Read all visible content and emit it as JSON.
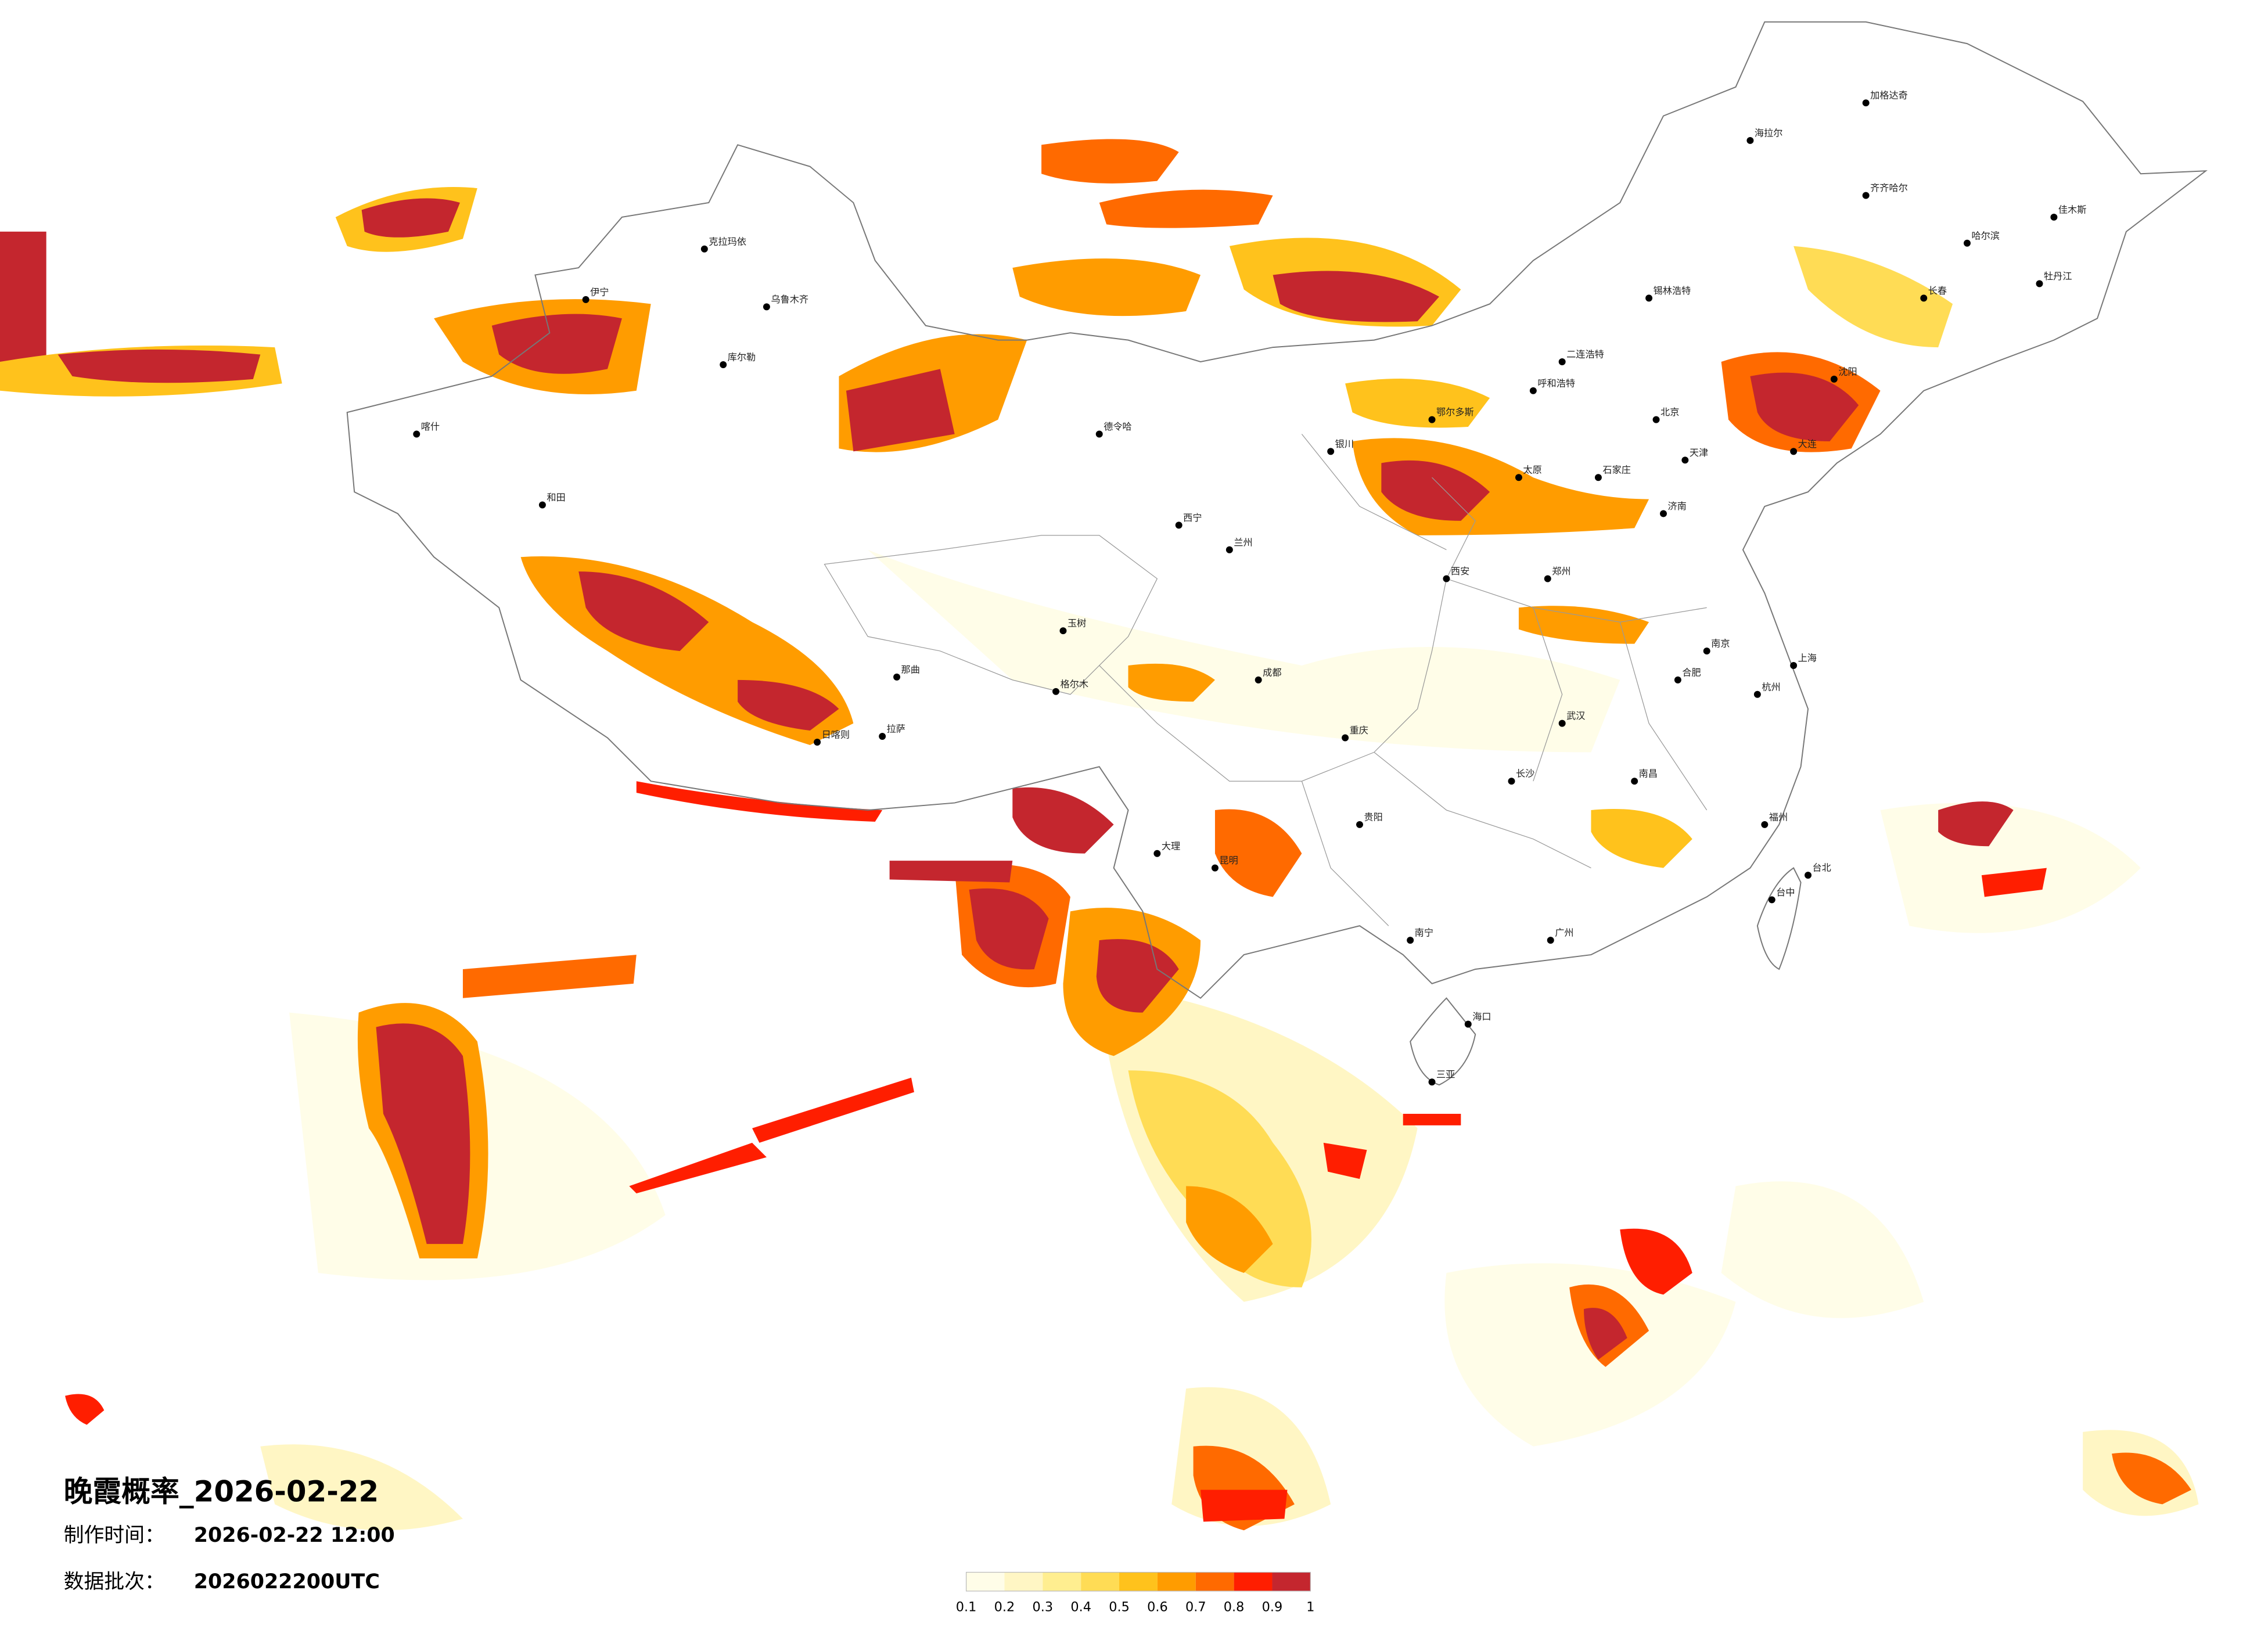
{
  "title": "晚霞概率_2026-02-22",
  "info": [
    {
      "label": "制作时间：",
      "value": "2026-02-22 12:00"
    },
    {
      "label": "数据批次：",
      "value": "2026022200UTC"
    }
  ],
  "legend": {
    "colors": [
      "#fffde8",
      "#fff6c4",
      "#ffee90",
      "#ffdc55",
      "#ffc21c",
      "#ff9c00",
      "#ff6a00",
      "#ff1e00",
      "#c4262e"
    ],
    "ticks": [
      0.1,
      0.2,
      0.3,
      0.4,
      0.5,
      0.6,
      0.7,
      0.8,
      0.9,
      1
    ]
  },
  "cities": [
    "北京",
    "天津",
    "哈尔滨",
    "长春",
    "沈阳",
    "大连",
    "呼和浩特",
    "乌鲁木齐",
    "克拉玛依",
    "伊宁",
    "和田",
    "喀什",
    "拉萨",
    "日喀则",
    "西宁",
    "兰州",
    "银川",
    "西安",
    "成都",
    "重庆",
    "昆明",
    "贵阳",
    "南宁",
    "海口",
    "广州",
    "福州",
    "台北",
    "台中",
    "杭州",
    "上海",
    "南京",
    "武汉",
    "长沙",
    "南昌",
    "合肥",
    "济南",
    "太原",
    "石家庄",
    "郑州",
    "格尔木",
    "海拉尔",
    "加格达奇",
    "齐齐哈尔",
    "佳木斯",
    "牡丹江",
    "锡林浩特",
    "玉树",
    "那曲",
    "大理",
    "三亚",
    "德令哈",
    "库尔勒",
    "鄂尔多斯",
    "二连浩特"
  ]
}
